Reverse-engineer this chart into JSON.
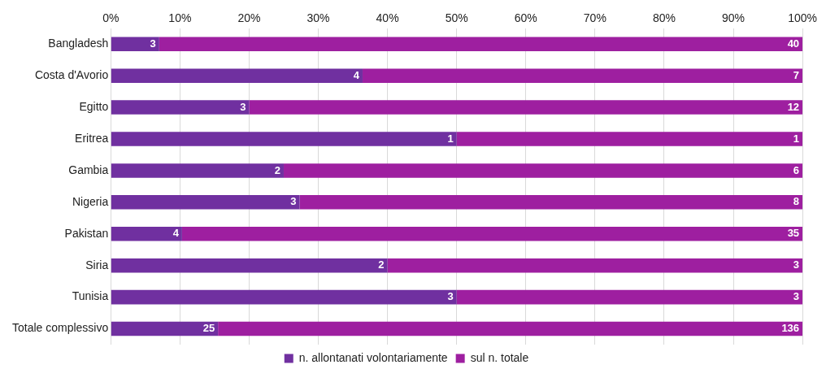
{
  "chart_data": {
    "type": "bar",
    "orientation": "horizontal",
    "stacked": true,
    "categories": [
      "Bangladesh",
      "Costa d'Avorio",
      "Egitto",
      "Eritrea",
      "Gambia",
      "Nigeria",
      "Pakistan",
      "Siria",
      "Tunisia",
      "Totale complessivo"
    ],
    "series": [
      {
        "name": "n. allontanati volontariamente",
        "color": "#7030a0",
        "values": [
          7.0,
          36.4,
          20.0,
          50.0,
          25.0,
          27.3,
          10.3,
          40.0,
          50.0,
          15.5
        ]
      },
      {
        "name": "sul n. totale",
        "color": "#9e1fa0",
        "values": [
          93.0,
          63.6,
          80.0,
          50.0,
          75.0,
          72.7,
          89.7,
          60.0,
          50.0,
          84.5
        ]
      }
    ],
    "annotations": [
      {
        "text": "3",
        "x": 7.0,
        "y": "Bangladesh"
      },
      {
        "text": "40",
        "x": 100,
        "y": "Bangladesh"
      },
      {
        "text": "4",
        "x": 36.4,
        "y": "Costa d'Avorio"
      },
      {
        "text": "7",
        "x": 100,
        "y": "Costa d'Avorio"
      },
      {
        "text": "3",
        "x": 20.0,
        "y": "Egitto"
      },
      {
        "text": "12",
        "x": 100,
        "y": "Egitto"
      },
      {
        "text": "1",
        "x": 50.0,
        "y": "Eritrea"
      },
      {
        "text": "1",
        "x": 100,
        "y": "Eritrea"
      },
      {
        "text": "2",
        "x": 25.0,
        "y": "Gambia"
      },
      {
        "text": "6",
        "x": 100,
        "y": "Gambia"
      },
      {
        "text": "3",
        "x": 27.3,
        "y": "Nigeria"
      },
      {
        "text": "8",
        "x": 100,
        "y": "Nigeria"
      },
      {
        "text": "4",
        "x": 10.3,
        "y": "Pakistan"
      },
      {
        "text": "35",
        "x": 100,
        "y": "Pakistan"
      },
      {
        "text": "2",
        "x": 40.0,
        "y": "Siria"
      },
      {
        "text": "3",
        "x": 100,
        "y": "Siria"
      },
      {
        "text": "3",
        "x": 50.0,
        "y": "Tunisia"
      },
      {
        "text": "3",
        "x": 100,
        "y": "Tunisia"
      },
      {
        "text": "25",
        "x": 15.5,
        "y": "Totale complessivo"
      },
      {
        "text": "136",
        "x": 100,
        "y": "Totale complessivo"
      }
    ],
    "xlim": [
      0,
      100
    ],
    "xticks": [
      {
        "value": 0,
        "label": "0%"
      },
      {
        "value": 10,
        "label": "10%"
      },
      {
        "value": 20,
        "label": "20%"
      },
      {
        "value": 30,
        "label": "30%"
      },
      {
        "value": 40,
        "label": "40%"
      },
      {
        "value": 50,
        "label": "50%"
      },
      {
        "value": 60,
        "label": "60%"
      },
      {
        "value": 70,
        "label": "70%"
      },
      {
        "value": 80,
        "label": "80%"
      },
      {
        "value": 90,
        "label": "90%"
      },
      {
        "value": 100,
        "label": "100%"
      }
    ],
    "grid": "x",
    "legend": "bottom"
  }
}
